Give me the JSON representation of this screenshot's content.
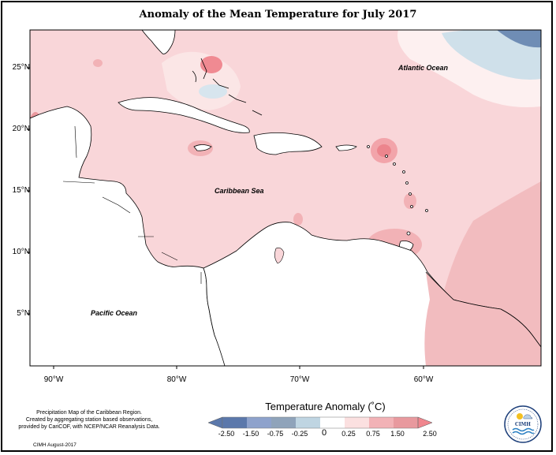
{
  "map": {
    "title": "Anomaly of the Mean Temperature for July 2017",
    "region": "Caribbean",
    "variable": "Temperature Anomaly",
    "unit": "°C",
    "period": "July 2017"
  },
  "lat_labels": [
    "25°N",
    "20°N",
    "15°N",
    "10°N",
    "5°N"
  ],
  "lon_labels": [
    "90°W",
    "80°W",
    "70°W",
    "60°W"
  ],
  "ocean_labels": {
    "atlantic": "Atlantic Ocean",
    "caribbean": "Caribbean Sea",
    "pacific": "Pacific Ocean"
  },
  "legend": {
    "title": "Temperature Anomaly (˚C)",
    "ticks": [
      "-2.50",
      "-1.50",
      "-0.75",
      "-0.25",
      "0",
      "0.25",
      "0.75",
      "1.50",
      "2.50"
    ],
    "colors": [
      "#5b78ab",
      "#8ea2cc",
      "#8fa3ba",
      "#bfd5e2",
      "#ffffff",
      "#fbe0e0",
      "#f2b2b6",
      "#e8999e",
      "#f0868e"
    ]
  },
  "info": {
    "line1": "Precipitation Map of the Caribbean Region.",
    "line2": "Created by aggregating station based observations,",
    "line3": "provided by CariCOF, with NCEP/NCAR Reanalysis Data.",
    "credit": "CIMH August-2017"
  },
  "logo": {
    "text": "CIMH",
    "colors": {
      "ring": "#1d3f7a",
      "sun": "#f3c021",
      "wave": "#2a7fc3"
    }
  },
  "colors": {
    "sea_base": "#f9d6d9",
    "warm_spot": "#f08a92",
    "cool_spot": "#cfe0ea",
    "land": "#ffffff",
    "coast": "#000000"
  }
}
